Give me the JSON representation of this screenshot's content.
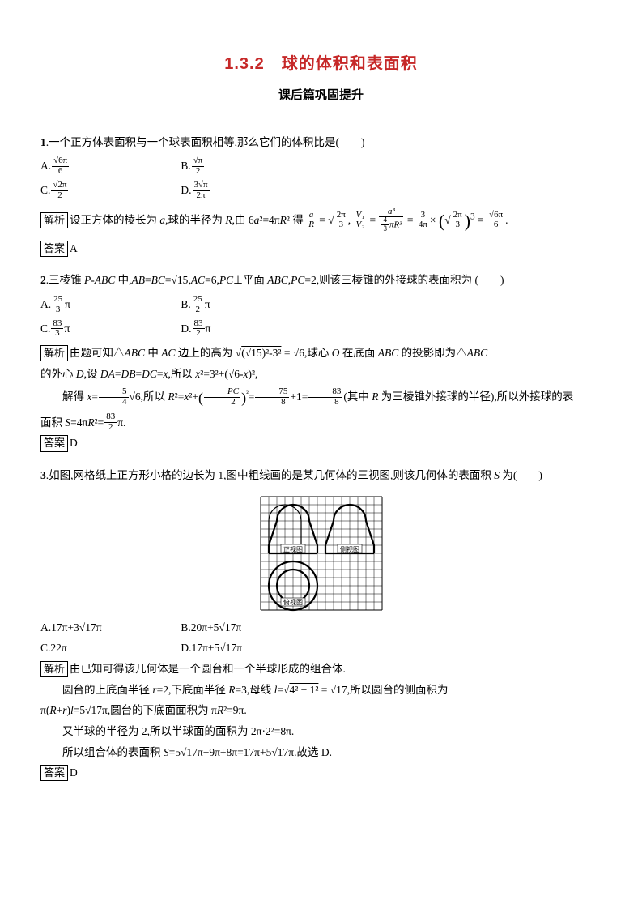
{
  "title": "1.3.2　球的体积和表面积",
  "subtitle": "课后篇巩固提升",
  "colors": {
    "title": "#c62828",
    "text": "#000000",
    "bg": "#ffffff",
    "box_border": "#000000"
  },
  "fonts": {
    "title_family": "Microsoft YaHei",
    "title_size_pt": 16,
    "body_family": "SimSun",
    "body_size_pt": 10.5
  },
  "labels": {
    "jiexi": "解析",
    "daan": "答案"
  },
  "q1": {
    "num": "1",
    "stem": ".一个正方体表面积与一个球表面积相等,那么它们的体积比是(　　)",
    "optA_pre": "A.",
    "optA_num": "√6π",
    "optA_den": "6",
    "optB_pre": "B.",
    "optB_num": "√π",
    "optB_den": "2",
    "optC_pre": "C.",
    "optC_num": "√2π",
    "optC_den": "2",
    "optD_pre": "D.",
    "optD_num": "3√π",
    "optD_den": "2π",
    "jiexi_a": "设正方体的棱长为 ",
    "jiexi_a2": "a",
    "jiexi_a3": ",球的半径为 ",
    "jiexi_a4": "R",
    "jiexi_a5": ",由 6",
    "jiexi_a6": "a",
    "jiexi_a7": "²=4π",
    "jiexi_a8": "R",
    "jiexi_a9": "² 得",
    "frac1_num_left": "a",
    "frac1_num_right": "",
    "frac1_den": "R",
    "mid1": "= √",
    "frac2_num": "2π",
    "frac2_den": "3",
    "mid2": ",",
    "frac3_num": "V₁",
    "frac3_den": "V₂",
    "mid3": "=",
    "frac4_num": "a³",
    "frac4_den1_top": "4",
    "frac4_den1_bot": "3",
    "frac4_den_rest": "πR³",
    "mid4": "=",
    "frac5_num": "3",
    "frac5_den": "4π",
    "mid5": "×",
    "paren_open": "(",
    "paren_close": ")",
    "inner_num": "2π",
    "inner_den": "3",
    "exp3": "3",
    "mid6": "=",
    "res_num": "√6π",
    "res_den": "6",
    "period": ".",
    "answer": "A"
  },
  "q2": {
    "num": "2",
    "stem_a": ".三棱锥 ",
    "P": "P",
    "dash": "-",
    "ABC": "ABC",
    "stem_b": " 中,",
    "AB": "AB",
    "eq": "=",
    "BC": "BC",
    "sqrt15": "√15",
    "comma": ",",
    "AC": "AC",
    "eq6": "=6,",
    "PC": "PC",
    "perp": "⊥平面 ",
    "ABC2": "ABC",
    "pc2": "PC",
    "eq2": "=2,则该三棱锥的外接球的表面积为",
    "paren": "(　　)",
    "optA_pre": "A.",
    "optA_num": "25",
    "optA_den": "3",
    "optA_pi": "π",
    "optB_pre": "B.",
    "optB_num": "25",
    "optB_den": "2",
    "optB_pi": "π",
    "optC_pre": "C.",
    "optC_num": "83",
    "optC_den": "3",
    "optC_pi": "π",
    "optD_pre": "D.",
    "optD_num": "83",
    "optD_den": "2",
    "optD_pi": "π",
    "jx1": "由题可知△",
    "jx1b": "ABC",
    "jx2": " 中 ",
    "jx2b": "AC",
    "jx3": " 边上的高为 √",
    "sqA": "(√15)²-3²",
    "eqB": "= √6",
    "jx4": ",球心 ",
    "O": "O",
    "jx5": " 在底面 ",
    "ABC3": "ABC",
    "jx6": " 的投影即为△",
    "ABC4": "ABC",
    "line2a": "的外心 ",
    "D": "D",
    "line2b": ",设 ",
    "DA": "DA",
    "eqc": "=",
    "DB": "DB",
    "eqd": "=",
    "DC": "DC",
    "eqe": "=",
    "x": "x",
    "line2c": ",所以 ",
    "x2": "x",
    "sq2": "²=3²+(√6-",
    "xv": "x",
    "line2d": ")²,",
    "line3a": "解得 ",
    "xv2": "x",
    "eqf": "=",
    "f54n": "5",
    "f54d": "4",
    "sqrt6": "√6",
    "line3b": ",所以 ",
    "R": "R",
    "sqR": "²=",
    "x3": "x",
    "sqx": "²+",
    "pcfr_n": "PC",
    "pcfr_d": "2",
    "sq": "²",
    "eqg": "=",
    "f758n": "75",
    "f758d": "8",
    "plus1": "+1=",
    "f838n": "83",
    "f838d": "8",
    "line3c": "(其中 ",
    "R2": "R",
    "line3d": " 为三棱锥外接球的半径),所以外接球的表",
    "line4a": "面积 ",
    "S": "S",
    "eqh": "=4π",
    "R3": "R",
    "sqr": "²=",
    "f832n": "83",
    "f832d": "2",
    "pi": "π.",
    "answer": "D"
  },
  "q3": {
    "num": "3",
    "stem": ".如图,网格纸上正方形小格的边长为 1,图中粗线画的是某几何体的三视图,则该几何体的表面积 ",
    "Svar": "S",
    "stem2": " 为(　　)",
    "views": {
      "zheng": "正视图",
      "ce": "侧视图",
      "fu": "俯视图"
    },
    "grid": {
      "cols": 15,
      "rows": 14,
      "cell": 10,
      "stroke": "#000",
      "bg": "#fff",
      "thick": 2.2,
      "thin": 0.5
    },
    "optA": "A.17π+3√17π",
    "optB": "B.20π+5√17π",
    "optC": "C.22π",
    "optD": "D.17π+5√17π",
    "jx1": "由已知可得该几何体是一个圆台和一个半球形成的组合体.",
    "jx2a": "圆台的上底面半径 ",
    "r": "r",
    "eq2": "=2,下底面半径 ",
    "R": "R",
    "eq3": "=3,母线 ",
    "lvar": "l",
    "eq4": "=√",
    "sq": "4² + 1²",
    "eq5": "= √17",
    "jx2b": ",所以圆台的侧面积为",
    "jx3a": "π(",
    "R2": "R",
    "plus": "+",
    "r2": "r",
    "jx3b": ")",
    "l2": "l",
    "eq6": "=5√17π,",
    "jx3c": "圆台的下底面面积为 π",
    "R3": "R",
    "sq2": "²=9π.",
    "jx4": "又半球的半径为 2,所以半球面的面积为 2π·2²=8π.",
    "jx5a": "所以组合体的表面积 ",
    "S2": "S",
    "jx5b": "=5√17π+9π+8π=17π+5√17π.故选 D.",
    "answer": "D"
  }
}
